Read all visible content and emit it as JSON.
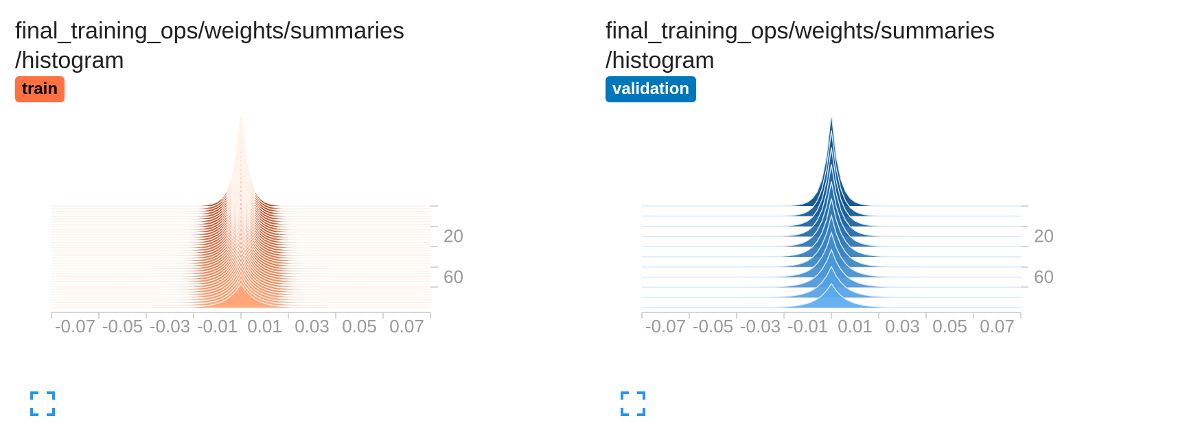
{
  "cards": [
    {
      "id": "train",
      "title_line1": "final_training_ops/weights/summaries",
      "title_line2": "/histogram",
      "run_label": "train",
      "run_color": "#ff7043",
      "chart_data": {
        "type": "histogram-offset",
        "x_ticks": [
          "-0.07",
          "-0.05",
          "-0.03",
          "-0.01",
          "0.01",
          "0.03",
          "0.05",
          "0.07"
        ],
        "x_range": [
          -0.08,
          0.08
        ],
        "y_ticks": [
          "20",
          "60"
        ],
        "step_range": [
          0,
          100
        ],
        "slices": 40,
        "palette": {
          "back": "#b3411a",
          "front": "#ffa577",
          "line": "#fff3ec",
          "ghost": "#e2e2e2"
        }
      },
      "fullscreen_icon": "fullscreen-icon"
    },
    {
      "id": "validation",
      "title_line1": "final_training_ops/weights/summaries",
      "title_line2": "/histogram",
      "run_label": "validation",
      "run_color": "#0077bb",
      "chart_data": {
        "type": "histogram-offset",
        "x_ticks": [
          "-0.07",
          "-0.05",
          "-0.03",
          "-0.01",
          "0.01",
          "0.03",
          "0.05",
          "0.07"
        ],
        "x_range": [
          -0.08,
          0.08
        ],
        "y_ticks": [
          "20",
          "60"
        ],
        "step_range": [
          0,
          100
        ],
        "slices": 11,
        "palette": {
          "back": "#0a4d84",
          "front": "#5aaaf0",
          "line": "#d8ebfb",
          "ghost": "#e2e2e2"
        }
      },
      "fullscreen_icon": "fullscreen-icon"
    }
  ]
}
